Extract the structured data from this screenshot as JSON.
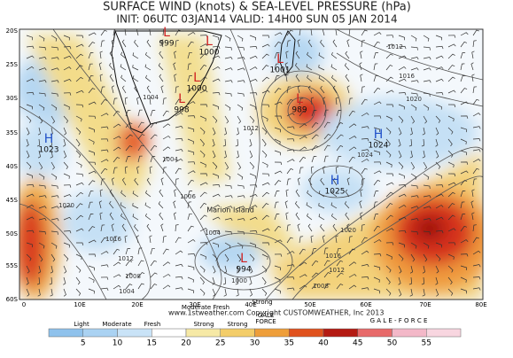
{
  "header": {
    "title": "SURFACE WIND (knots) & SEA-LEVEL PRESSURE (hPa)",
    "subtitle": "INIT: 06UTC 03JAN14   VALID: 14H00 SUN 05 JAN 2014"
  },
  "lat_labels": [
    "20S",
    "25S",
    "30S",
    "35S",
    "40S",
    "45S",
    "50S",
    "55S",
    "60S"
  ],
  "lon_labels": [
    "0",
    "10E",
    "20E",
    "30E",
    "40E",
    "50E",
    "60E",
    "70E",
    "80E"
  ],
  "systems": [
    {
      "symbol": "H",
      "value": 1023
    },
    {
      "symbol": "L",
      "value": 999
    },
    {
      "symbol": "L",
      "value": 1000
    },
    {
      "symbol": "L",
      "value": 1000
    },
    {
      "symbol": "L",
      "value": 998
    },
    {
      "symbol": "L",
      "value": 1001
    },
    {
      "symbol": "L",
      "value": 989
    },
    {
      "symbol": "H",
      "value": 1024
    },
    {
      "symbol": "H",
      "value": 1025
    },
    {
      "symbol": "L",
      "value": 994
    }
  ],
  "isobar_labels": [
    1012,
    1016,
    1020,
    1004,
    1012,
    1004,
    1006,
    1020,
    1016,
    1012,
    1008,
    1004,
    1004,
    1000,
    1024,
    1020,
    1016,
    1012,
    1008
  ],
  "place": "Marion Island",
  "credit": "www.1stweather.com Copyright CUSTOMWEATHER, Inc 2013",
  "overlay_classes": [
    "Moderate Fresh",
    "Strong",
    "GALE",
    "FORCE"
  ],
  "wind_classes": [
    "Light",
    "Moderate",
    "Fresh",
    "Strong",
    "Strong",
    "G A L E - F O R C E"
  ],
  "colorbar": {
    "ticks": [
      5,
      10,
      15,
      20,
      25,
      30,
      35,
      40,
      45,
      50,
      55
    ]
  }
}
